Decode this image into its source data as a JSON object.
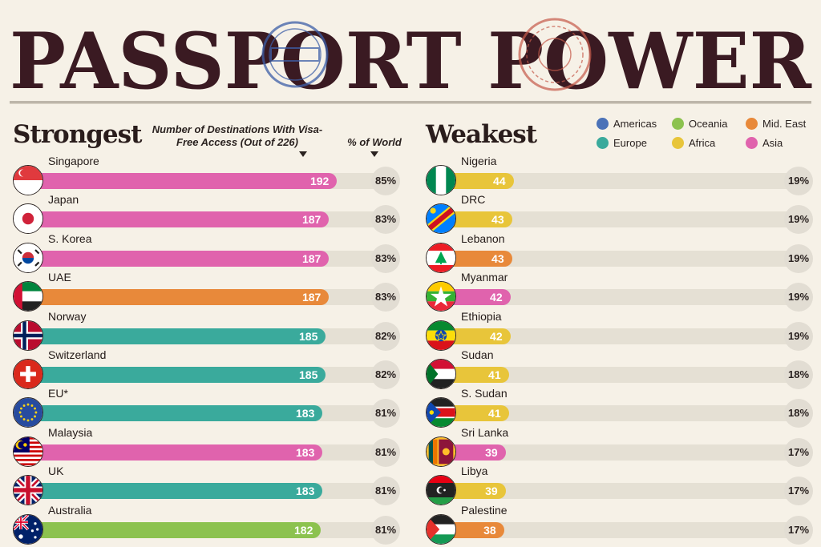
{
  "title": "PASSPORT POWER",
  "left": {
    "heading": "Strongest",
    "col_header": "Number of Destinations With Visa-Free Access (Out of 226)",
    "pct_header": "% of World"
  },
  "right": {
    "heading": "Weakest"
  },
  "legend": [
    {
      "label": "Americas",
      "color": "#4b72b8"
    },
    {
      "label": "Oceania",
      "color": "#8cc24f"
    },
    {
      "label": "Mid. East",
      "color": "#e8893a"
    },
    {
      "label": "Europe",
      "color": "#3aaa9c"
    },
    {
      "label": "Africa",
      "color": "#e8c53a"
    },
    {
      "label": "Asia",
      "color": "#e063ad"
    }
  ],
  "chart_data": [
    {
      "type": "bar",
      "title": "Strongest",
      "xlim": [
        0,
        226
      ],
      "categories": [
        "Singapore",
        "Japan",
        "S. Korea",
        "UAE",
        "Norway",
        "Switzerland",
        "EU*",
        "Malaysia",
        "UK",
        "Australia"
      ],
      "values": [
        192,
        187,
        187,
        187,
        185,
        185,
        183,
        183,
        183,
        182
      ],
      "percent_labels": [
        "85%",
        "83%",
        "83%",
        "83%",
        "82%",
        "82%",
        "81%",
        "81%",
        "81%",
        "81%"
      ],
      "regions": [
        "Asia",
        "Asia",
        "Asia",
        "Mid. East",
        "Europe",
        "Europe",
        "Europe",
        "Asia",
        "Europe",
        "Oceania"
      ],
      "flags": [
        "singapore-flag",
        "japan-flag",
        "south-korea-flag",
        "uae-flag",
        "norway-flag",
        "switzerland-flag",
        "eu-flag",
        "malaysia-flag",
        "uk-flag",
        "australia-flag"
      ]
    },
    {
      "type": "bar",
      "title": "Weakest",
      "xlim": [
        0,
        226
      ],
      "categories": [
        "Nigeria",
        "DRC",
        "Lebanon",
        "Myanmar",
        "Ethiopia",
        "Sudan",
        "S. Sudan",
        "Sri Lanka",
        "Libya",
        "Palestine"
      ],
      "values": [
        44,
        43,
        43,
        42,
        42,
        41,
        41,
        39,
        39,
        38
      ],
      "percent_labels": [
        "19%",
        "19%",
        "19%",
        "19%",
        "19%",
        "18%",
        "18%",
        "17%",
        "17%",
        "17%"
      ],
      "regions": [
        "Africa",
        "Africa",
        "Mid. East",
        "Asia",
        "Africa",
        "Africa",
        "Africa",
        "Asia",
        "Africa",
        "Mid. East"
      ],
      "flags": [
        "nigeria-flag",
        "drc-flag",
        "lebanon-flag",
        "myanmar-flag",
        "ethiopia-flag",
        "sudan-flag",
        "south-sudan-flag",
        "sri-lanka-flag",
        "libya-flag",
        "palestine-flag"
      ]
    }
  ]
}
